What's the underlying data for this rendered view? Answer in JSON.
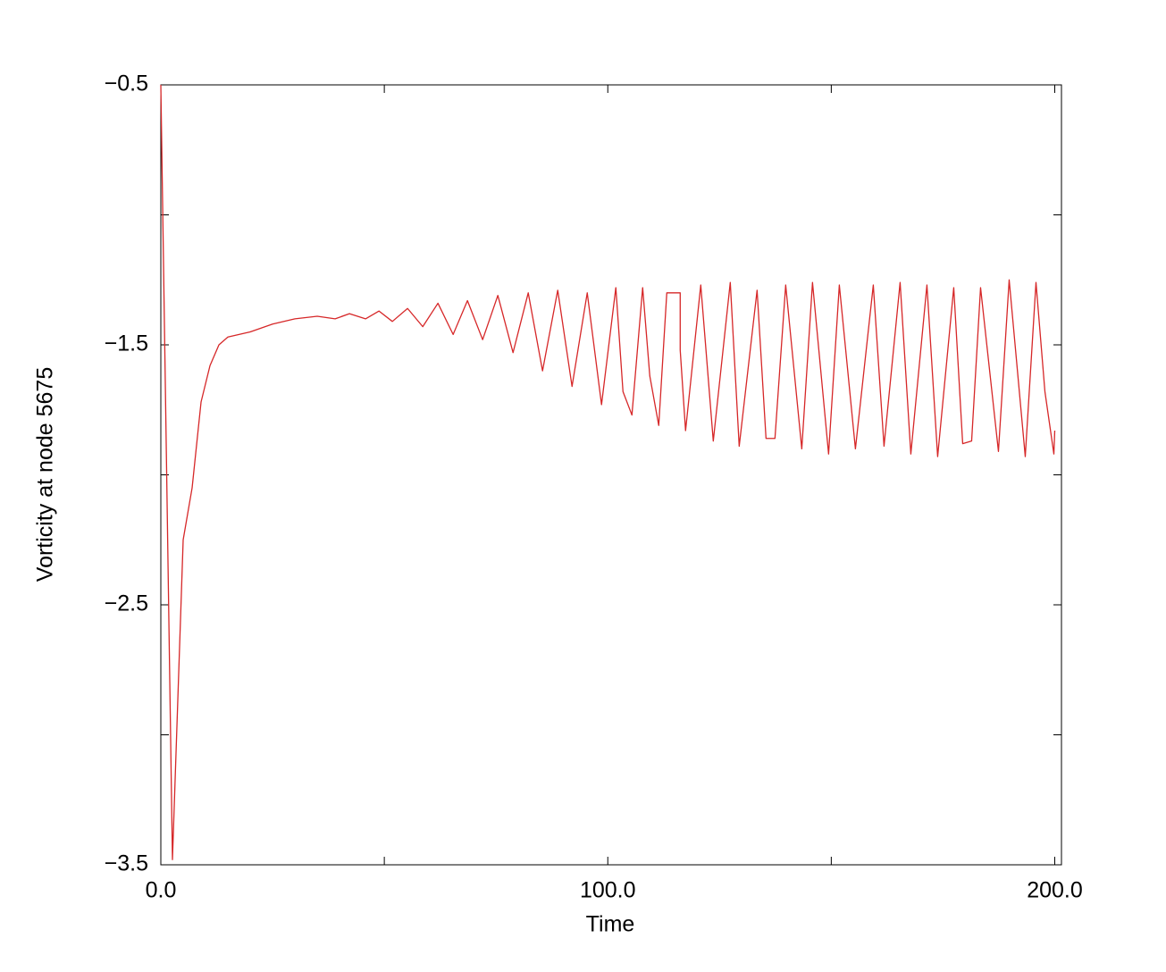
{
  "chart_data": {
    "type": "line",
    "x_label": "Time",
    "y_label": "Vorticity at node 5675",
    "xlim": [
      0,
      201.5
    ],
    "ylim": [
      -3.5,
      -0.5
    ],
    "xticks": [
      {
        "value": 0,
        "label": "0.0"
      },
      {
        "value": 100,
        "label": "100.0"
      },
      {
        "value": 200,
        "label": "200.0"
      }
    ],
    "x_minor_ticks": [
      50,
      150
    ],
    "yticks": [
      {
        "value": -0.5,
        "label": "−0.5"
      },
      {
        "value": -1.5,
        "label": "−1.5"
      },
      {
        "value": -2.5,
        "label": "−2.5"
      },
      {
        "value": -3.5,
        "label": "−3.5"
      }
    ],
    "y_minor_ticks": [
      -1,
      -2,
      -3
    ],
    "grid": false,
    "series": [
      {
        "color": "#d62728",
        "x": [
          0,
          2.6,
          5,
          7,
          9,
          11,
          13,
          15,
          20,
          25,
          30,
          35,
          39,
          42.2,
          45.8,
          48.8,
          51.8,
          55.2,
          58.6,
          62,
          65.4,
          68.6,
          72,
          75.4,
          78.8,
          82.2,
          85.4,
          88.8,
          92,
          95.4,
          98.6,
          101.8,
          103.4,
          105.4,
          107.8,
          109.4,
          111.4,
          113.2,
          116.2,
          116.2,
          117.4,
          120.8,
          123.6,
          127.4,
          129.4,
          133.4,
          135.4,
          137.4,
          139.8,
          143.4,
          145.8,
          149.4,
          151.8,
          155.4,
          159.4,
          161.8,
          165.4,
          167.8,
          171.4,
          173.8,
          177.4,
          179.4,
          181.4,
          183.4,
          187.4,
          189.8,
          193.4,
          195.8,
          197.8,
          199.8,
          200
        ],
        "values": [
          -0.5,
          -3.48,
          -2.25,
          -2.05,
          -1.72,
          -1.58,
          -1.5,
          -1.47,
          -1.45,
          -1.42,
          -1.4,
          -1.39,
          -1.4,
          -1.38,
          -1.4,
          -1.37,
          -1.41,
          -1.36,
          -1.43,
          -1.34,
          -1.46,
          -1.33,
          -1.48,
          -1.31,
          -1.53,
          -1.3,
          -1.6,
          -1.29,
          -1.66,
          -1.3,
          -1.73,
          -1.28,
          -1.68,
          -1.77,
          -1.28,
          -1.62,
          -1.81,
          -1.3,
          -1.3,
          -1.52,
          -1.83,
          -1.27,
          -1.87,
          -1.26,
          -1.89,
          -1.29,
          -1.86,
          -1.86,
          -1.27,
          -1.9,
          -1.26,
          -1.92,
          -1.27,
          -1.9,
          -1.27,
          -1.89,
          -1.26,
          -1.92,
          -1.27,
          -1.93,
          -1.28,
          -1.88,
          -1.87,
          -1.28,
          -1.91,
          -1.25,
          -1.93,
          -1.26,
          -1.68,
          -1.92,
          -1.83
        ]
      }
    ]
  }
}
